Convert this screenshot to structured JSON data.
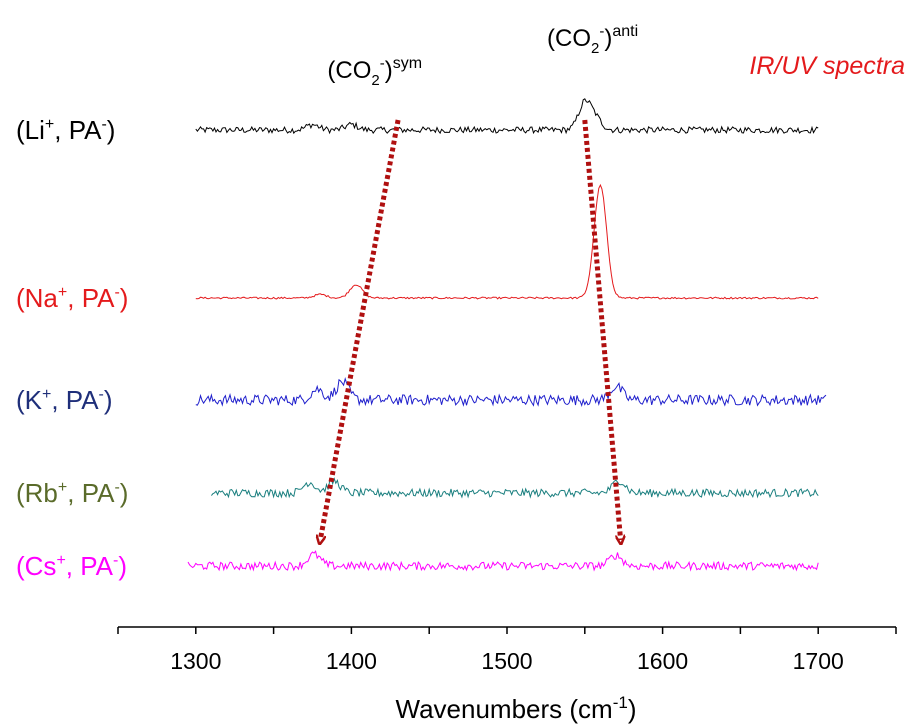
{
  "chart_data": {
    "type": "line",
    "title": "",
    "tag": "IR/UV spectra",
    "tag_color": "#e41a1c",
    "xlabel": "Wavenumbers (cm",
    "xlabel_sup": "-1",
    "xlabel_end": ")",
    "xlim": [
      1250,
      1750
    ],
    "x_ticks": [
      1300,
      1400,
      1500,
      1600,
      1700
    ],
    "x_tick_labels": [
      "1300",
      "1400",
      "1500",
      "1600",
      "1700"
    ],
    "y_axis": "hidden",
    "grid": false,
    "peak_labels": [
      {
        "base": "(CO",
        "sub": "2",
        "sup1": "-",
        "close": ")",
        "sup2": "sym",
        "x": 1415
      },
      {
        "base": "(CO",
        "sub": "2",
        "sup1": "-",
        "close": ")",
        "sup2": "anti",
        "x": 1555
      }
    ],
    "series": [
      {
        "cation": "Li",
        "label_start": "(Li",
        "label_sup": "+",
        "label_mid": ", PA",
        "label_sup2": "-",
        "label_end": ")",
        "color": "#000000",
        "label_color": "#000000",
        "x_range": [
          1300,
          1700
        ],
        "noise": 0.35,
        "peaks": [
          {
            "x": 1375,
            "h": 0.6
          },
          {
            "x": 1400,
            "h": 0.6
          },
          {
            "x": 1550,
            "h": 3.0
          },
          {
            "x": 1557,
            "h": 1.2
          }
        ]
      },
      {
        "cation": "Na",
        "label_start": "(Na",
        "label_sup": "+",
        "label_mid": ", PA",
        "label_sup2": "-",
        "label_end": ")",
        "color": "#e41a1c",
        "label_color": "#e41a1c",
        "x_range": [
          1300,
          1700
        ],
        "noise": 0.1,
        "peaks": [
          {
            "x": 1380,
            "h": 0.4
          },
          {
            "x": 1403,
            "h": 1.5
          },
          {
            "x": 1560,
            "h": 12.5
          }
        ]
      },
      {
        "cation": "K",
        "label_start": "(K",
        "label_sup": "+",
        "label_mid": ", PA",
        "label_sup2": "-",
        "label_end": ")",
        "color": "#1f1fcc",
        "label_color": "#1f2f7a",
        "x_range": [
          1300,
          1705
        ],
        "noise": 0.6,
        "peaks": [
          {
            "x": 1378,
            "h": 1.2
          },
          {
            "x": 1394,
            "h": 2.0
          },
          {
            "x": 1570,
            "h": 1.5
          }
        ]
      },
      {
        "cation": "Rb",
        "label_start": "(Rb",
        "label_sup": "+",
        "label_mid": ", PA",
        "label_sup2": "-",
        "label_end": ")",
        "color": "#1a7f7f",
        "label_color": "#5a6b2a",
        "x_range": [
          1310,
          1700
        ],
        "noise": 0.45,
        "peaks": [
          {
            "x": 1373,
            "h": 1.2
          },
          {
            "x": 1389,
            "h": 1.3
          },
          {
            "x": 1572,
            "h": 1.4
          }
        ]
      },
      {
        "cation": "Cs",
        "label_start": "(Cs",
        "label_sup": "+",
        "label_mid": ", PA",
        "label_sup2": "-",
        "label_end": ")",
        "color": "#ff00ff",
        "label_color": "#ff00ff",
        "x_range": [
          1295,
          1700
        ],
        "noise": 0.45,
        "peaks": [
          {
            "x": 1376,
            "h": 1.3
          },
          {
            "x": 1570,
            "h": 1.2
          }
        ]
      }
    ],
    "arrows": [
      {
        "from_series": "Li",
        "from_x": 1430,
        "to_series": "Cs",
        "to_x": 1380,
        "color": "#b01010"
      },
      {
        "from_series": "Li",
        "from_x": 1550,
        "to_series": "Cs",
        "to_x": 1573,
        "color": "#b01010"
      }
    ]
  }
}
